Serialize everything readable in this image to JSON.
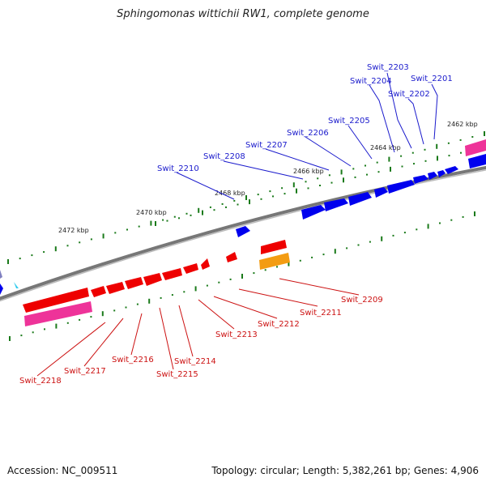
{
  "title": "Sphingomonas wittichii RW1, complete genome",
  "accession": "Accession: NC_009511",
  "summary": "Topology: circular; Length: 5,382,261 bp; Genes: 4,906",
  "ruler_labels": [
    "2462 kbp",
    "2464 kbp",
    "2466 kbp",
    "2468 kbp",
    "2470 kbp",
    "2472 kbp"
  ],
  "genes_top": [
    "Swit_2201",
    "Swit_2202",
    "Swit_2203",
    "Swit_2204",
    "Swit_2205",
    "Swit_2206",
    "Swit_2207",
    "Swit_2208",
    "Swit_2210"
  ],
  "genes_bottom": [
    "Swit_2209",
    "Swit_2211",
    "Swit_2212",
    "Swit_2213",
    "Swit_2214",
    "Swit_2215",
    "Swit_2216",
    "Swit_2217",
    "Swit_2218"
  ],
  "colors": {
    "forward": "#0000ee",
    "reverse": "#ee0000",
    "rna": "#ee3399",
    "other": "#f39c12",
    "backbone": "#808080",
    "ticks": "#1a7a1a",
    "label_top": "#1a1acc",
    "label_bottom": "#cc1111"
  }
}
